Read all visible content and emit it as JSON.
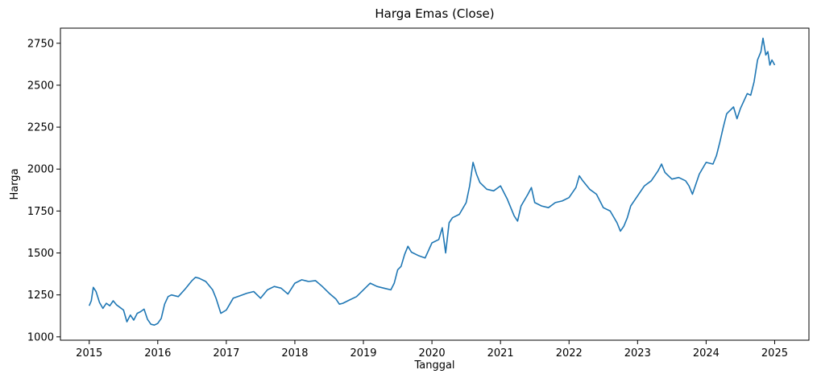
{
  "chart_data": {
    "type": "line",
    "title": "Harga Emas (Close)",
    "xlabel": "Tanggal",
    "ylabel": "Harga",
    "grid": false,
    "legend": "none",
    "xlim": [
      2014.58,
      2025.5
    ],
    "ylim": [
      980,
      2840
    ],
    "x_ticks": [
      2015,
      2016,
      2017,
      2018,
      2019,
      2020,
      2021,
      2022,
      2023,
      2024,
      2025
    ],
    "x_tick_labels": [
      "2015",
      "2016",
      "2017",
      "2018",
      "2019",
      "2020",
      "2021",
      "2022",
      "2023",
      "2024",
      "2025"
    ],
    "y_ticks": [
      1000,
      1250,
      1500,
      1750,
      2000,
      2250,
      2500,
      2750
    ],
    "y_tick_labels": [
      "1000",
      "1250",
      "1500",
      "1750",
      "2000",
      "2250",
      "2500",
      "2750"
    ],
    "series": [
      {
        "color": "#1f77b4",
        "x": [
          2015.0,
          2015.03,
          2015.06,
          2015.1,
          2015.15,
          2015.2,
          2015.25,
          2015.3,
          2015.35,
          2015.4,
          2015.45,
          2015.5,
          2015.55,
          2015.6,
          2015.65,
          2015.7,
          2015.75,
          2015.8,
          2015.85,
          2015.9,
          2015.95,
          2016.0,
          2016.05,
          2016.1,
          2016.15,
          2016.2,
          2016.3,
          2016.4,
          2016.5,
          2016.55,
          2016.6,
          2016.7,
          2016.8,
          2016.85,
          2016.92,
          2017.0,
          2017.1,
          2017.2,
          2017.3,
          2017.4,
          2017.5,
          2017.6,
          2017.7,
          2017.8,
          2017.9,
          2018.0,
          2018.1,
          2018.2,
          2018.3,
          2018.4,
          2018.5,
          2018.6,
          2018.65,
          2018.7,
          2018.8,
          2018.9,
          2019.0,
          2019.1,
          2019.2,
          2019.3,
          2019.4,
          2019.45,
          2019.5,
          2019.55,
          2019.6,
          2019.65,
          2019.7,
          2019.8,
          2019.9,
          2020.0,
          2020.1,
          2020.15,
          2020.2,
          2020.25,
          2020.3,
          2020.4,
          2020.5,
          2020.55,
          2020.6,
          2020.65,
          2020.7,
          2020.8,
          2020.9,
          2021.0,
          2021.1,
          2021.2,
          2021.25,
          2021.3,
          2021.4,
          2021.45,
          2021.5,
          2021.6,
          2021.7,
          2021.8,
          2021.9,
          2022.0,
          2022.1,
          2022.15,
          2022.2,
          2022.3,
          2022.4,
          2022.5,
          2022.6,
          2022.7,
          2022.75,
          2022.8,
          2022.85,
          2022.9,
          2023.0,
          2023.1,
          2023.2,
          2023.3,
          2023.35,
          2023.4,
          2023.5,
          2023.6,
          2023.7,
          2023.75,
          2023.8,
          2023.9,
          2024.0,
          2024.1,
          2024.15,
          2024.2,
          2024.25,
          2024.3,
          2024.4,
          2024.45,
          2024.5,
          2024.6,
          2024.65,
          2024.7,
          2024.75,
          2024.8,
          2024.83,
          2024.87,
          2024.9,
          2024.93,
          2024.96,
          2025.0
        ],
        "y": [
          1185,
          1215,
          1295,
          1270,
          1205,
          1170,
          1200,
          1185,
          1215,
          1190,
          1175,
          1160,
          1090,
          1130,
          1100,
          1140,
          1150,
          1165,
          1105,
          1075,
          1070,
          1080,
          1110,
          1195,
          1240,
          1250,
          1240,
          1285,
          1335,
          1355,
          1350,
          1330,
          1280,
          1230,
          1140,
          1160,
          1230,
          1245,
          1260,
          1270,
          1230,
          1280,
          1300,
          1290,
          1255,
          1320,
          1340,
          1330,
          1335,
          1300,
          1260,
          1225,
          1195,
          1200,
          1220,
          1240,
          1280,
          1320,
          1300,
          1290,
          1280,
          1320,
          1400,
          1420,
          1490,
          1540,
          1505,
          1485,
          1470,
          1560,
          1580,
          1650,
          1500,
          1680,
          1710,
          1730,
          1800,
          1900,
          2040,
          1970,
          1920,
          1880,
          1870,
          1900,
          1820,
          1720,
          1690,
          1780,
          1850,
          1890,
          1800,
          1780,
          1770,
          1800,
          1810,
          1830,
          1890,
          1960,
          1930,
          1880,
          1850,
          1770,
          1750,
          1680,
          1630,
          1660,
          1710,
          1780,
          1840,
          1900,
          1930,
          1990,
          2030,
          1980,
          1940,
          1950,
          1930,
          1900,
          1850,
          1970,
          2040,
          2030,
          2080,
          2160,
          2250,
          2330,
          2370,
          2300,
          2360,
          2450,
          2440,
          2520,
          2650,
          2700,
          2780,
          2680,
          2700,
          2620,
          2650,
          2620
        ]
      }
    ]
  }
}
